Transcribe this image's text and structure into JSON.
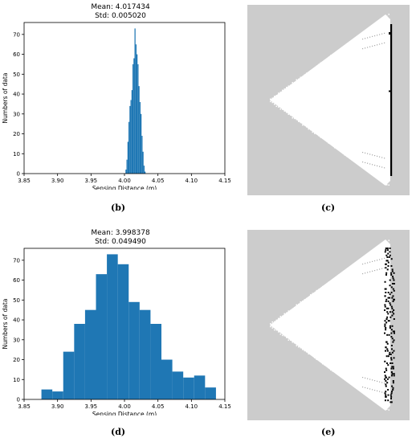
{
  "panels": [
    {
      "label": "(b)"
    },
    {
      "label": "(c)"
    },
    {
      "label": "(d)"
    },
    {
      "label": "(e)"
    }
  ],
  "chart_data": [
    {
      "type": "bar",
      "title": "Mean: 4.017434",
      "subtitle": "Std: 0.005020",
      "xlabel": "Sensing Distance (m)",
      "ylabel": "Numbers of data",
      "xlim": [
        3.85,
        4.15
      ],
      "ylim": [
        0,
        76
      ],
      "xticks": [
        "3.85",
        "3.90",
        "3.95",
        "4.00",
        "4.05",
        "4.10",
        "4.15"
      ],
      "yticks": [
        "0",
        "10",
        "20",
        "30",
        "40",
        "50",
        "60",
        "70"
      ],
      "bin_width": 0.0015,
      "bins": [
        {
          "x": 4.0015,
          "y": 2
        },
        {
          "x": 4.003,
          "y": 7
        },
        {
          "x": 4.0045,
          "y": 16
        },
        {
          "x": 4.006,
          "y": 26
        },
        {
          "x": 4.0075,
          "y": 34
        },
        {
          "x": 4.009,
          "y": 37
        },
        {
          "x": 4.0105,
          "y": 42
        },
        {
          "x": 4.012,
          "y": 55
        },
        {
          "x": 4.0135,
          "y": 58
        },
        {
          "x": 4.015,
          "y": 73
        },
        {
          "x": 4.0165,
          "y": 65
        },
        {
          "x": 4.018,
          "y": 60
        },
        {
          "x": 4.0195,
          "y": 55
        },
        {
          "x": 4.021,
          "y": 44
        },
        {
          "x": 4.0225,
          "y": 36
        },
        {
          "x": 4.024,
          "y": 30
        },
        {
          "x": 4.0255,
          "y": 19
        },
        {
          "x": 4.027,
          "y": 11
        },
        {
          "x": 4.0285,
          "y": 4
        },
        {
          "x": 4.03,
          "y": 1
        }
      ],
      "color": "#1f77b4",
      "grid": false
    },
    {
      "type": "bar",
      "title": "Mean: 3.998378",
      "subtitle": "Std: 0.049490",
      "xlabel": "Sensing Distance (m)",
      "ylabel": "Numbers of data",
      "xlim": [
        3.85,
        4.15
      ],
      "ylim": [
        0,
        76
      ],
      "xticks": [
        "3.85",
        "3.90",
        "3.95",
        "4.00",
        "4.05",
        "4.10",
        "4.15"
      ],
      "yticks": [
        "0",
        "10",
        "20",
        "30",
        "40",
        "50",
        "60",
        "70"
      ],
      "bin_width": 0.0163,
      "bins": [
        {
          "x": 3.8759,
          "y": 5
        },
        {
          "x": 3.8922,
          "y": 4
        },
        {
          "x": 3.9085,
          "y": 24
        },
        {
          "x": 3.9248,
          "y": 38
        },
        {
          "x": 3.9411,
          "y": 45
        },
        {
          "x": 3.9574,
          "y": 63
        },
        {
          "x": 3.9737,
          "y": 73
        },
        {
          "x": 3.99,
          "y": 68
        },
        {
          "x": 4.0063,
          "y": 49
        },
        {
          "x": 4.0226,
          "y": 45
        },
        {
          "x": 4.0389,
          "y": 38
        },
        {
          "x": 4.0552,
          "y": 20
        },
        {
          "x": 4.0715,
          "y": 14
        },
        {
          "x": 4.0878,
          "y": 11
        },
        {
          "x": 4.1041,
          "y": 12
        },
        {
          "x": 4.1204,
          "y": 6
        }
      ],
      "color": "#1f77b4",
      "grid": false
    }
  ],
  "scan_images": [
    {
      "description": "white triangular sensing field on gray background with a thin black vertical line of hits",
      "jitter": "low"
    },
    {
      "description": "white triangular sensing field on gray background with scattered black hits",
      "jitter": "high"
    }
  ]
}
